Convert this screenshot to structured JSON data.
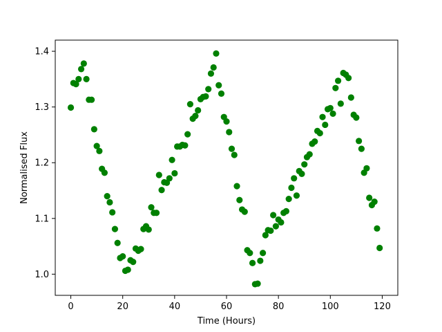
{
  "chart_data": {
    "type": "scatter",
    "title": "",
    "xlabel": "Time (Hours)",
    "ylabel": "Normalised Flux",
    "xlim": [
      -6,
      126
    ],
    "ylim": [
      0.962,
      1.42
    ],
    "xticks": [
      0,
      20,
      40,
      60,
      80,
      100,
      120
    ],
    "yticks": [
      1.0,
      1.1,
      1.2,
      1.3,
      1.4
    ],
    "xtick_labels": [
      "0",
      "20",
      "40",
      "60",
      "80",
      "100",
      "120"
    ],
    "ytick_labels": [
      "1.0",
      "1.1",
      "1.2",
      "1.3",
      "1.4"
    ],
    "grid": false,
    "marker_color": "#008000",
    "series": [
      {
        "x": [
          0,
          1,
          2,
          3,
          4,
          5,
          6,
          7,
          8,
          9,
          10,
          11,
          12,
          13,
          14,
          15,
          16,
          17,
          18,
          19,
          20,
          21,
          22,
          23,
          24,
          25,
          26,
          27,
          28,
          29,
          30,
          31,
          32,
          33,
          34,
          35,
          36,
          37,
          38,
          39,
          40,
          41,
          42,
          43,
          44,
          45,
          46,
          47,
          48,
          49,
          50,
          51,
          52,
          53,
          54,
          55,
          56,
          57,
          58,
          59,
          60,
          61,
          62,
          63,
          64,
          65,
          66,
          67,
          68,
          69,
          70,
          71,
          72,
          73,
          74,
          75,
          76,
          77,
          78,
          79,
          80,
          81,
          82,
          83,
          84,
          85,
          86,
          87,
          88,
          89,
          90,
          91,
          92,
          93,
          94,
          95,
          96,
          97,
          98,
          99,
          100,
          101,
          102,
          103,
          104,
          105,
          106,
          107,
          108,
          109,
          110,
          111,
          112,
          113,
          114,
          115,
          116,
          117,
          118,
          119
        ],
        "y": [
          1.299,
          1.343,
          1.341,
          1.35,
          1.368,
          1.378,
          1.35,
          1.313,
          1.313,
          1.26,
          1.23,
          1.221,
          1.189,
          1.182,
          1.14,
          1.129,
          1.111,
          1.081,
          1.056,
          1.029,
          1.032,
          1.006,
          1.008,
          1.025,
          1.022,
          1.046,
          1.042,
          1.045,
          1.081,
          1.086,
          1.08,
          1.12,
          1.11,
          1.11,
          1.178,
          1.151,
          1.165,
          1.164,
          1.172,
          1.205,
          1.181,
          1.229,
          1.229,
          1.232,
          1.231,
          1.251,
          1.305,
          1.279,
          1.284,
          1.294,
          1.314,
          1.318,
          1.319,
          1.332,
          1.36,
          1.371,
          1.396,
          1.339,
          1.324,
          1.282,
          1.274,
          1.255,
          1.225,
          1.214,
          1.158,
          1.133,
          1.116,
          1.112,
          1.043,
          1.038,
          1.02,
          0.982,
          0.983,
          1.024,
          1.038,
          1.07,
          1.079,
          1.078,
          1.106,
          1.086,
          1.098,
          1.093,
          1.11,
          1.113,
          1.135,
          1.155,
          1.172,
          1.141,
          1.185,
          1.18,
          1.197,
          1.21,
          1.215,
          1.234,
          1.238,
          1.257,
          1.253,
          1.282,
          1.268,
          1.296,
          1.298,
          1.288,
          1.334,
          1.347,
          1.306,
          1.361,
          1.358,
          1.352,
          1.317,
          1.286,
          1.281,
          1.239,
          1.225,
          1.182,
          1.19,
          1.137,
          1.124,
          1.13,
          1.082,
          1.047
        ]
      }
    ]
  }
}
